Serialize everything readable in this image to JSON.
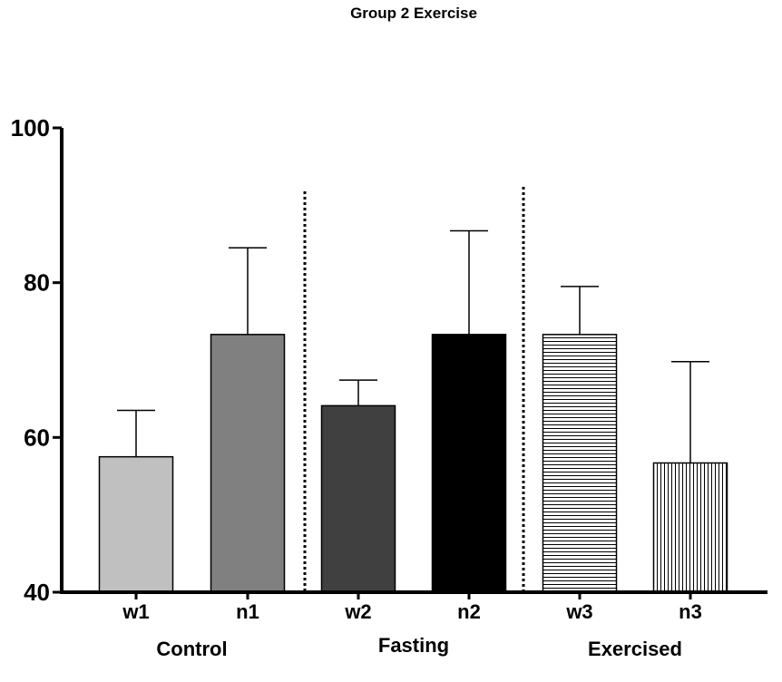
{
  "chart_data": {
    "type": "bar",
    "title": "Group 2 Exercise",
    "xlabel": "",
    "ylabel": "",
    "ylim": [
      40,
      100
    ],
    "yticks": [
      40,
      60,
      80,
      100
    ],
    "categories": [
      "w1",
      "n1",
      "w2",
      "n2",
      "w3",
      "n3"
    ],
    "values": [
      57.5,
      73.3,
      64.1,
      73.3,
      73.3,
      56.7
    ],
    "errors": [
      6.0,
      11.2,
      3.3,
      13.4,
      6.2,
      13.1
    ],
    "fills": [
      "#c0c0c0",
      "#808080",
      "#404040",
      "#000000",
      "horizontal-hatch",
      "vertical-hatch"
    ],
    "groups": [
      {
        "label": "Control",
        "categories": [
          "w1",
          "n1"
        ]
      },
      {
        "label": "Fasting",
        "categories": [
          "w2",
          "n2"
        ]
      },
      {
        "label": "Exercised",
        "categories": [
          "w3",
          "n3"
        ]
      }
    ],
    "separators": "dotted",
    "grid": false,
    "legend": "none"
  }
}
